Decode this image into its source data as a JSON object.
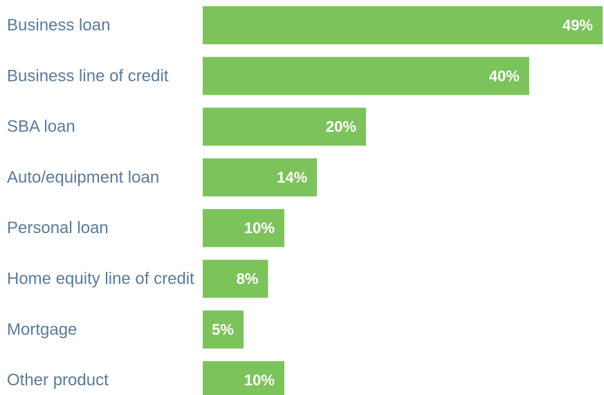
{
  "chart_data": {
    "type": "bar",
    "orientation": "horizontal",
    "categories": [
      "Business loan",
      "Business line of credit",
      "SBA loan",
      "Auto/equipment loan",
      "Personal loan",
      "Home equity line of credit",
      "Mortgage",
      "Other product"
    ],
    "values": [
      49,
      40,
      20,
      14,
      10,
      8,
      5,
      10
    ],
    "value_labels": [
      "49%",
      "40%",
      "20%",
      "14%",
      "10%",
      "8%",
      "5%",
      "10%"
    ],
    "unit": "%",
    "xlim": [
      0,
      49
    ],
    "grid": false,
    "legend": "none",
    "title": "",
    "xlabel": "",
    "ylabel": ""
  },
  "colors": {
    "bar": "#7cc35c",
    "category_text": "#5b7a99",
    "value_text": "#ffffff",
    "background": "#ffffff"
  }
}
